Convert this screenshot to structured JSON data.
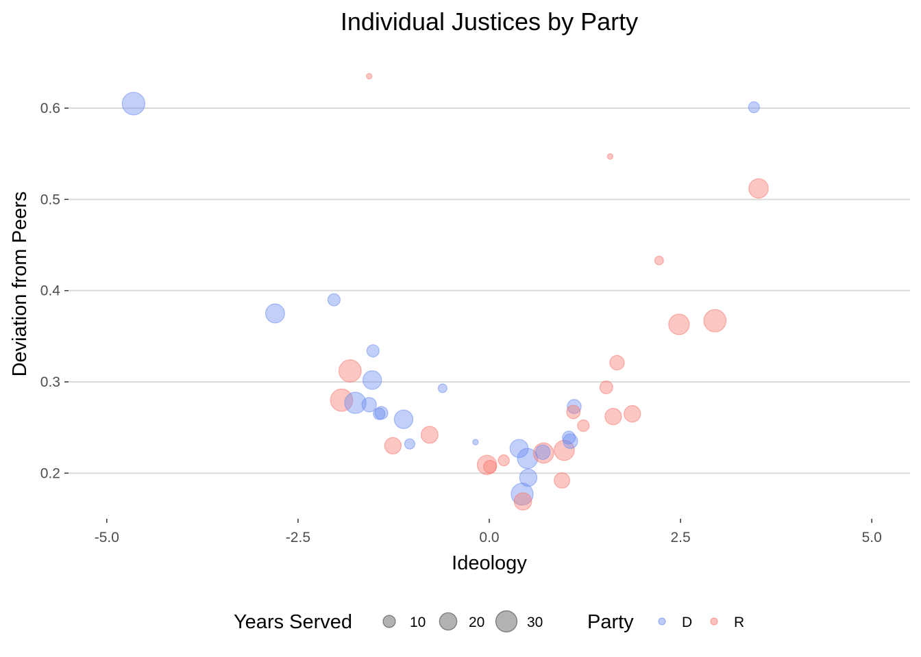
{
  "chart_data": {
    "type": "scatter",
    "title": "Individual Justices by Party",
    "xlabel": "Ideology",
    "ylabel": "Deviation from Peers",
    "xlim": [
      -5.5,
      5.5
    ],
    "ylim": [
      0.15,
      0.66
    ],
    "x_ticks": [
      -5.0,
      -2.5,
      0.0,
      2.5,
      5.0
    ],
    "x_tick_labels": [
      "-5.0",
      "-2.5",
      "0.0",
      "2.5",
      "5.0"
    ],
    "y_ticks": [
      0.2,
      0.3,
      0.4,
      0.5,
      0.6
    ],
    "y_tick_labels": [
      "0.2",
      "0.3",
      "0.4",
      "0.5",
      "0.6"
    ],
    "grid": "horizontal major only",
    "legend_position": "bottom",
    "size_legend": {
      "title": "Years Served",
      "values": [
        10,
        20,
        30
      ],
      "labels": [
        "10",
        "20",
        "30"
      ]
    },
    "color_legend": {
      "title": "Party",
      "entries": [
        {
          "key": "D",
          "label": "D",
          "color": "#6b8cf0"
        },
        {
          "key": "R",
          "label": "R",
          "color": "#f8766d"
        }
      ]
    },
    "size_range": [
      1,
      36
    ],
    "points": [
      {
        "x": -4.65,
        "y": 0.605,
        "party": "D",
        "years": 34
      },
      {
        "x": -2.8,
        "y": 0.375,
        "party": "D",
        "years": 24
      },
      {
        "x": -2.03,
        "y": 0.39,
        "party": "D",
        "years": 10
      },
      {
        "x": -1.52,
        "y": 0.334,
        "party": "D",
        "years": 10
      },
      {
        "x": -1.53,
        "y": 0.302,
        "party": "D",
        "years": 23
      },
      {
        "x": -1.75,
        "y": 0.277,
        "party": "D",
        "years": 30
      },
      {
        "x": -1.57,
        "y": 0.275,
        "party": "D",
        "years": 14
      },
      {
        "x": -1.41,
        "y": 0.266,
        "party": "D",
        "years": 11
      },
      {
        "x": -1.44,
        "y": 0.265,
        "party": "D",
        "years": 9
      },
      {
        "x": -1.12,
        "y": 0.259,
        "party": "D",
        "years": 23
      },
      {
        "x": -1.04,
        "y": 0.232,
        "party": "D",
        "years": 7
      },
      {
        "x": -0.61,
        "y": 0.293,
        "party": "D",
        "years": 5
      },
      {
        "x": -0.18,
        "y": 0.234,
        "party": "D",
        "years": 2
      },
      {
        "x": 0.39,
        "y": 0.227,
        "party": "D",
        "years": 22
      },
      {
        "x": 0.5,
        "y": 0.216,
        "party": "D",
        "years": 27
      },
      {
        "x": 0.51,
        "y": 0.195,
        "party": "D",
        "years": 20
      },
      {
        "x": 0.43,
        "y": 0.177,
        "party": "D",
        "years": 32
      },
      {
        "x": 0.7,
        "y": 0.223,
        "party": "D",
        "years": 14
      },
      {
        "x": 1.04,
        "y": 0.239,
        "party": "D",
        "years": 11
      },
      {
        "x": 1.06,
        "y": 0.235,
        "party": "D",
        "years": 14
      },
      {
        "x": 1.11,
        "y": 0.273,
        "party": "D",
        "years": 13
      },
      {
        "x": 3.46,
        "y": 0.601,
        "party": "D",
        "years": 8
      },
      {
        "x": -1.57,
        "y": 0.635,
        "party": "R",
        "years": 2
      },
      {
        "x": 1.58,
        "y": 0.547,
        "party": "R",
        "years": 2
      },
      {
        "x": 3.52,
        "y": 0.512,
        "party": "R",
        "years": 25
      },
      {
        "x": 2.22,
        "y": 0.433,
        "party": "R",
        "years": 5
      },
      {
        "x": 2.48,
        "y": 0.363,
        "party": "R",
        "years": 28
      },
      {
        "x": 2.95,
        "y": 0.367,
        "party": "R",
        "years": 33
      },
      {
        "x": 1.67,
        "y": 0.321,
        "party": "R",
        "years": 14
      },
      {
        "x": 1.53,
        "y": 0.294,
        "party": "R",
        "years": 11
      },
      {
        "x": 1.1,
        "y": 0.267,
        "party": "R",
        "years": 12
      },
      {
        "x": 1.23,
        "y": 0.252,
        "party": "R",
        "years": 9
      },
      {
        "x": 1.62,
        "y": 0.262,
        "party": "R",
        "years": 18
      },
      {
        "x": 1.87,
        "y": 0.265,
        "party": "R",
        "years": 18
      },
      {
        "x": -1.82,
        "y": 0.312,
        "party": "R",
        "years": 33
      },
      {
        "x": -1.93,
        "y": 0.28,
        "party": "R",
        "years": 33
      },
      {
        "x": -1.26,
        "y": 0.23,
        "party": "R",
        "years": 18
      },
      {
        "x": -0.78,
        "y": 0.242,
        "party": "R",
        "years": 19
      },
      {
        "x": -0.03,
        "y": 0.209,
        "party": "R",
        "years": 25
      },
      {
        "x": 0.01,
        "y": 0.207,
        "party": "R",
        "years": 11
      },
      {
        "x": 0.19,
        "y": 0.214,
        "party": "R",
        "years": 8
      },
      {
        "x": 0.71,
        "y": 0.222,
        "party": "R",
        "years": 27
      },
      {
        "x": 0.98,
        "y": 0.225,
        "party": "R",
        "years": 27
      },
      {
        "x": 0.95,
        "y": 0.192,
        "party": "R",
        "years": 16
      },
      {
        "x": 0.44,
        "y": 0.169,
        "party": "R",
        "years": 20
      }
    ]
  }
}
